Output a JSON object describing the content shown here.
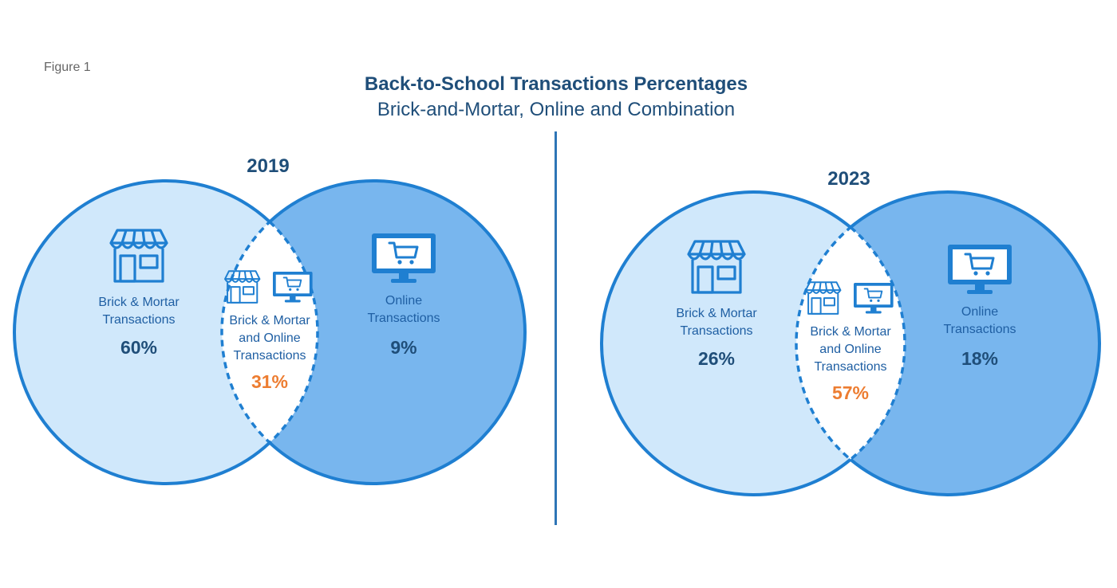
{
  "figure_label": "Figure 1",
  "title": "Back-to-School Transactions Percentages",
  "subtitle": "Brick-and-Mortar, Online and Combination",
  "colors": {
    "brick_fill": "#d0e8fb",
    "online_fill": "#78b6ee",
    "overlap_fill": "#ffffff",
    "outline": "#1f7fd1",
    "overlap_pct": "#ed7d31",
    "pct": "#1f4e79",
    "label": "#1f5fa3"
  },
  "icons": [
    "storefront-icon",
    "monitor-cart-icon"
  ],
  "chart_data": [
    {
      "type": "venn",
      "title": "2019",
      "sets": [
        {
          "label": [
            "Brick & Mortar",
            "Transactions"
          ],
          "value": 60,
          "display": "60%"
        },
        {
          "label": [
            "Online",
            "Transactions"
          ],
          "value": 9,
          "display": "9%"
        }
      ],
      "overlap": {
        "label": [
          "Brick & Mortar",
          "and Online",
          "Transactions"
        ],
        "value": 31,
        "display": "31%"
      }
    },
    {
      "type": "venn",
      "title": "2023",
      "sets": [
        {
          "label": [
            "Brick & Mortar",
            "Transactions"
          ],
          "value": 26,
          "display": "26%"
        },
        {
          "label": [
            "Online",
            "Transactions"
          ],
          "value": 18,
          "display": "18%"
        }
      ],
      "overlap": {
        "label": [
          "Brick & Mortar",
          "and Online",
          "Transactions"
        ],
        "value": 57,
        "display": "57%"
      }
    }
  ]
}
